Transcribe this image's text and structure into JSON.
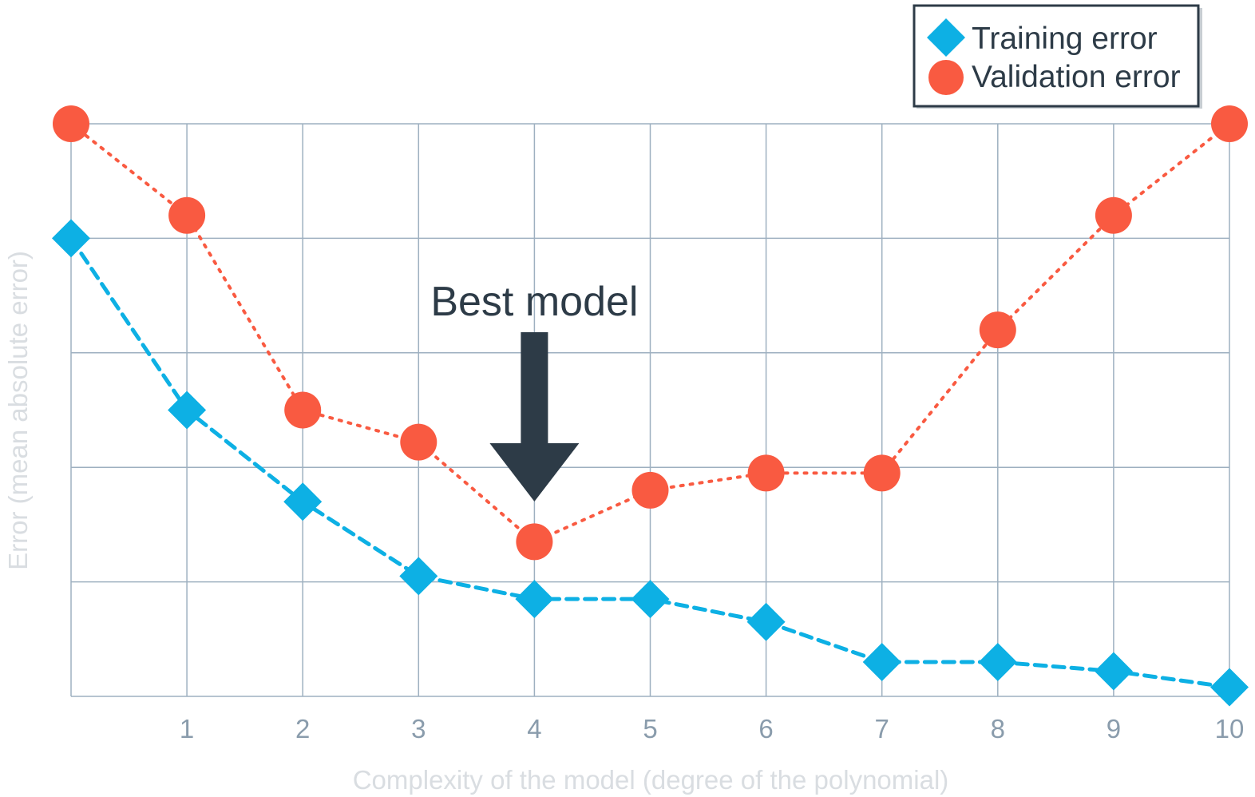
{
  "chart_data": {
    "type": "line",
    "title": "",
    "xlabel": "Complexity of the model (degree of the polynomial)",
    "ylabel": "Error (mean absolute error)",
    "x": [
      0,
      1,
      2,
      3,
      4,
      5,
      6,
      7,
      8,
      9,
      10
    ],
    "x_tick_labels": [
      "1",
      "2",
      "3",
      "4",
      "5",
      "6",
      "7",
      "8",
      "9",
      "10"
    ],
    "xlim": [
      0,
      10
    ],
    "ylim": [
      0,
      5
    ],
    "y_tick_labels": [],
    "grid": true,
    "legend_position": "top-right",
    "series": [
      {
        "name": "Training error",
        "marker": "diamond",
        "line_style": "dashed",
        "color": "#0db0e4",
        "values": [
          4.0,
          2.5,
          1.7,
          1.05,
          0.85,
          0.85,
          0.65,
          0.3,
          0.3,
          0.22,
          0.08
        ]
      },
      {
        "name": "Validation error",
        "marker": "circle",
        "line_style": "dotted",
        "color": "#f95a41",
        "values": [
          5.0,
          4.2,
          2.5,
          2.22,
          1.35,
          1.8,
          1.95,
          1.95,
          3.2,
          4.2,
          5.0
        ]
      }
    ],
    "annotation": {
      "text": "Best model",
      "x": 4
    },
    "colors": {
      "grid": "#9eb0c0",
      "axis_tick_text": "#8a9cac",
      "axis_title_text": "#d9dde1",
      "annotation": "#2d3b47",
      "legend_border": "#2d3b47"
    }
  }
}
